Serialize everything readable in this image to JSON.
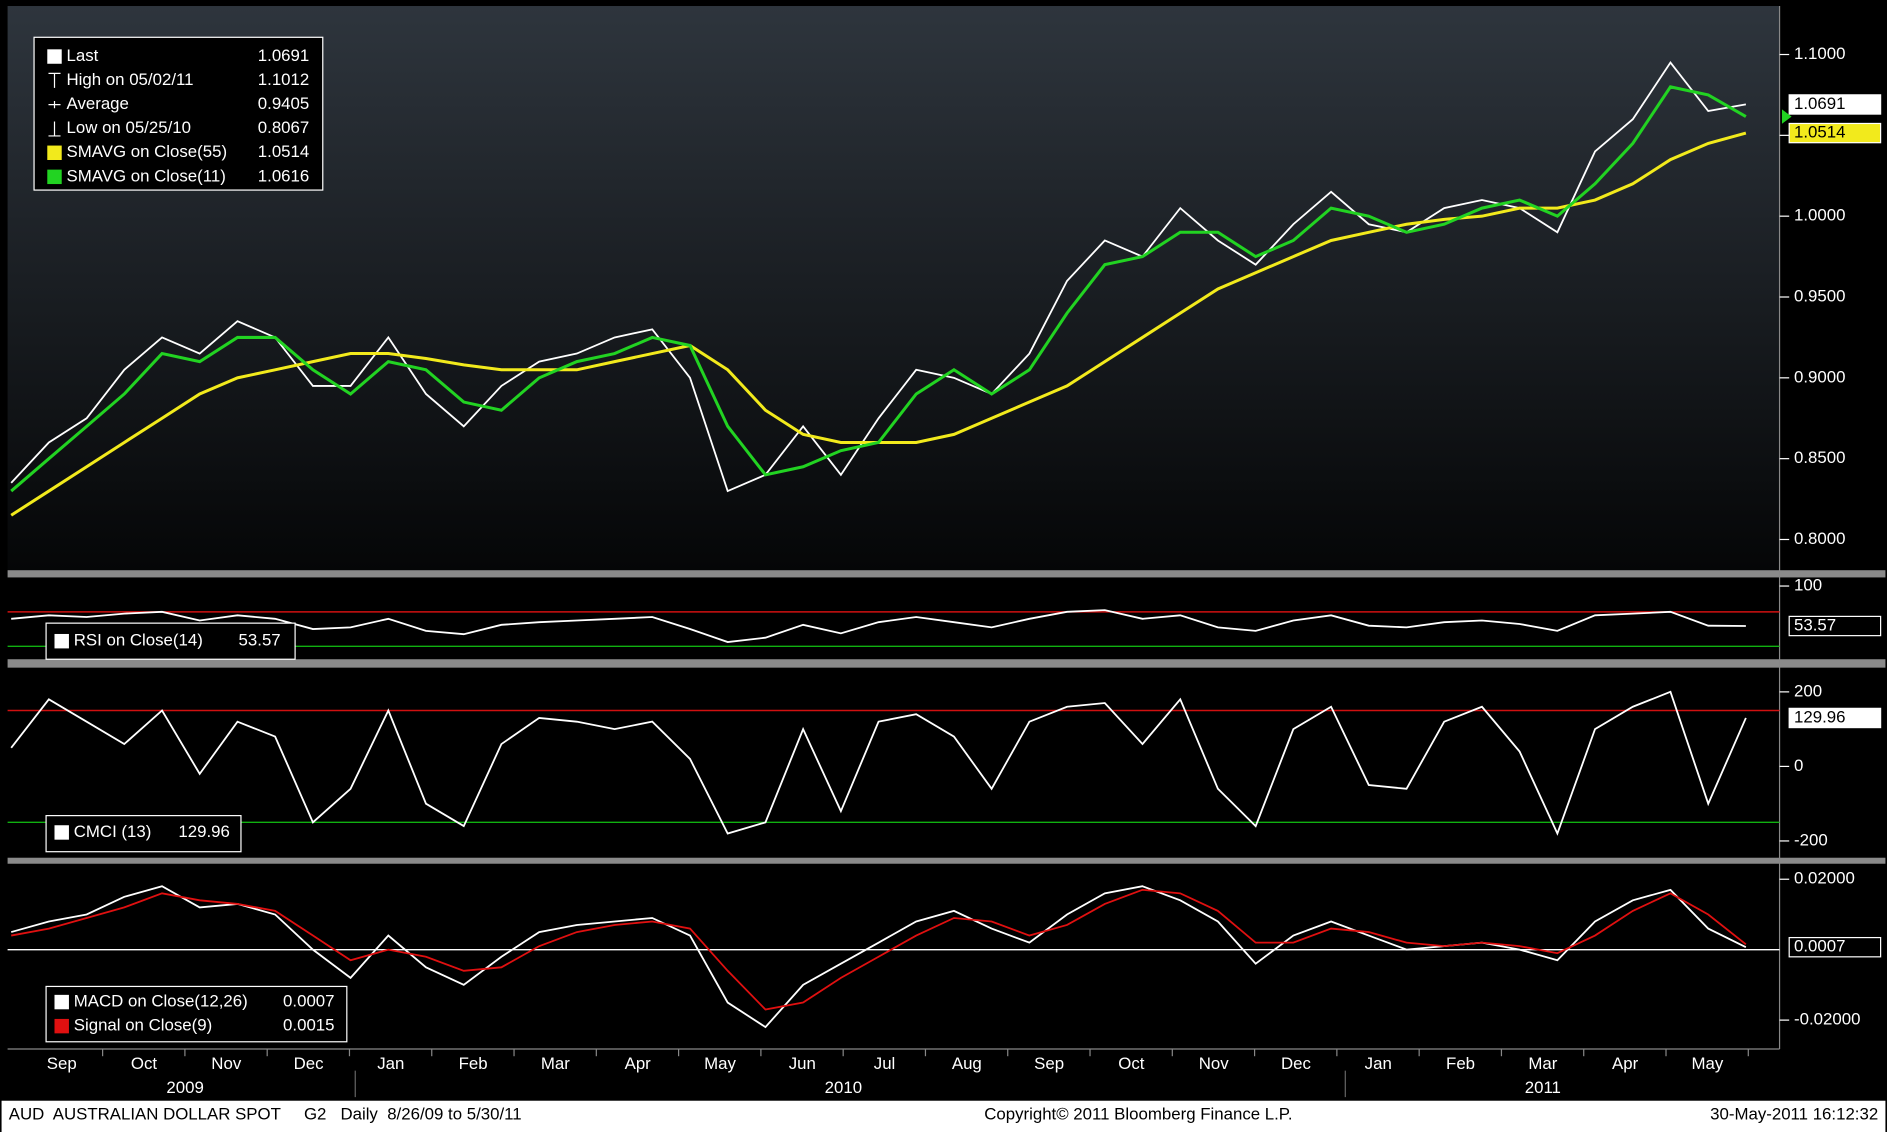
{
  "chart_data": [
    {
      "type": "line",
      "ylim": [
        0.781,
        1.13
      ],
      "yticks": [
        {
          "value": 0.8,
          "label": "0.8000"
        },
        {
          "value": 0.85,
          "label": "0.8500"
        },
        {
          "value": 0.9,
          "label": "0.9000"
        },
        {
          "value": 0.95,
          "label": "0.9500"
        },
        {
          "value": 1.0,
          "label": "1.0000"
        },
        {
          "value": 1.05,
          "label": "1.0500"
        },
        {
          "value": 1.1,
          "label": "1.1000"
        }
      ],
      "series": [
        {
          "name": "Last",
          "color": "#ffffff",
          "values": [
            0.835,
            0.86,
            0.875,
            0.905,
            0.925,
            0.915,
            0.935,
            0.925,
            0.895,
            0.895,
            0.925,
            0.89,
            0.87,
            0.895,
            0.91,
            0.915,
            0.925,
            0.93,
            0.9,
            0.83,
            0.84,
            0.87,
            0.84,
            0.875,
            0.905,
            0.9,
            0.89,
            0.915,
            0.96,
            0.985,
            0.975,
            1.005,
            0.985,
            0.97,
            0.995,
            1.015,
            0.995,
            0.99,
            1.005,
            1.01,
            1.005,
            0.99,
            1.04,
            1.06,
            1.095,
            1.065,
            1.0691
          ]
        },
        {
          "name": "SMAVG on Close(55)",
          "color": "#f2ea1c",
          "values": [
            0.815,
            0.83,
            0.845,
            0.86,
            0.875,
            0.89,
            0.9,
            0.905,
            0.91,
            0.915,
            0.915,
            0.912,
            0.908,
            0.905,
            0.905,
            0.905,
            0.91,
            0.915,
            0.92,
            0.905,
            0.88,
            0.865,
            0.86,
            0.86,
            0.86,
            0.865,
            0.875,
            0.885,
            0.895,
            0.91,
            0.925,
            0.94,
            0.955,
            0.965,
            0.975,
            0.985,
            0.99,
            0.995,
            0.998,
            1.0,
            1.005,
            1.005,
            1.01,
            1.02,
            1.035,
            1.045,
            1.0514
          ]
        },
        {
          "name": "SMAVG on Close(11)",
          "color": "#22d322",
          "values": [
            0.83,
            0.85,
            0.87,
            0.89,
            0.915,
            0.91,
            0.925,
            0.925,
            0.905,
            0.89,
            0.91,
            0.905,
            0.885,
            0.88,
            0.9,
            0.91,
            0.915,
            0.925,
            0.92,
            0.87,
            0.84,
            0.845,
            0.855,
            0.86,
            0.89,
            0.905,
            0.89,
            0.905,
            0.94,
            0.97,
            0.975,
            0.99,
            0.99,
            0.975,
            0.985,
            1.005,
            1.0,
            0.99,
            0.995,
            1.005,
            1.01,
            1.0,
            1.02,
            1.045,
            1.08,
            1.075,
            1.0616
          ]
        }
      ],
      "stats": [
        {
          "name": "High on 05/02/11",
          "value": 1.1012
        },
        {
          "name": "Average",
          "value": 0.9405
        },
        {
          "name": "Low on 05/25/10",
          "value": 0.8067
        }
      ]
    },
    {
      "type": "line",
      "ylim": [
        15,
        110
      ],
      "yticks": [
        100
      ],
      "ref_lines": [
        {
          "value": 70,
          "color": "#d01010"
        },
        {
          "value": 30,
          "color": "#10b010"
        }
      ],
      "series": [
        {
          "name": "RSI on Close(14)",
          "color": "#ffffff",
          "values": [
            62,
            66,
            64,
            68,
            70,
            60,
            66,
            62,
            50,
            52,
            62,
            48,
            44,
            55,
            58,
            60,
            62,
            64,
            50,
            35,
            40,
            55,
            45,
            58,
            64,
            58,
            52,
            62,
            70,
            72,
            62,
            66,
            52,
            48,
            60,
            66,
            54,
            52,
            58,
            60,
            56,
            48,
            66,
            68,
            70,
            54,
            53.57
          ]
        }
      ]
    },
    {
      "type": "line",
      "ylim": [
        -245,
        265
      ],
      "yticks": [
        -200,
        0,
        200
      ],
      "ref_lines": [
        {
          "value": 150,
          "color": "#d01010"
        },
        {
          "value": -150,
          "color": "#10b010"
        }
      ],
      "series": [
        {
          "name": "CMCI (13)",
          "color": "#ffffff",
          "values": [
            50,
            180,
            120,
            60,
            150,
            -20,
            120,
            80,
            -150,
            -60,
            150,
            -100,
            -160,
            60,
            130,
            120,
            100,
            120,
            20,
            -180,
            -150,
            100,
            -120,
            120,
            140,
            80,
            -60,
            120,
            160,
            170,
            60,
            180,
            -60,
            -160,
            100,
            160,
            -50,
            -60,
            120,
            160,
            40,
            -180,
            100,
            160,
            200,
            -100,
            129.96
          ]
        }
      ]
    },
    {
      "type": "line",
      "ylim": [
        -0.0282,
        0.0244
      ],
      "yticks": [
        {
          "value": -0.02,
          "label": "-0.02000"
        },
        {
          "value": 0.02,
          "label": "0.02000"
        }
      ],
      "ref_lines": [
        {
          "value": 0,
          "color": "#ffffff"
        }
      ],
      "series": [
        {
          "name": "MACD on Close(12,26)",
          "color": "#ffffff",
          "values": [
            0.005,
            0.008,
            0.01,
            0.015,
            0.018,
            0.012,
            0.013,
            0.01,
            0.0,
            -0.008,
            0.004,
            -0.005,
            -0.01,
            -0.002,
            0.005,
            0.007,
            0.008,
            0.009,
            0.004,
            -0.015,
            -0.022,
            -0.01,
            -0.004,
            0.002,
            0.008,
            0.011,
            0.006,
            0.002,
            0.01,
            0.016,
            0.018,
            0.014,
            0.008,
            -0.004,
            0.004,
            0.008,
            0.004,
            0.0,
            0.001,
            0.002,
            0.0,
            -0.003,
            0.008,
            0.014,
            0.017,
            0.006,
            0.0007
          ]
        },
        {
          "name": "Signal on Close(9)",
          "color": "#e01010",
          "values": [
            0.004,
            0.006,
            0.009,
            0.012,
            0.016,
            0.014,
            0.013,
            0.011,
            0.004,
            -0.003,
            0.0,
            -0.002,
            -0.006,
            -0.005,
            0.001,
            0.005,
            0.007,
            0.008,
            0.006,
            -0.006,
            -0.017,
            -0.015,
            -0.008,
            -0.002,
            0.004,
            0.009,
            0.008,
            0.004,
            0.007,
            0.013,
            0.017,
            0.016,
            0.011,
            0.002,
            0.002,
            0.006,
            0.005,
            0.002,
            0.001,
            0.002,
            0.001,
            -0.001,
            0.004,
            0.011,
            0.016,
            0.01,
            0.0015
          ]
        }
      ]
    }
  ],
  "time_axis": {
    "months": [
      "Sep",
      "Oct",
      "Nov",
      "Dec",
      "Jan",
      "Feb",
      "Mar",
      "Apr",
      "May",
      "Jun",
      "Jul",
      "Aug",
      "Sep",
      "Oct",
      "Nov",
      "Dec",
      "Jan",
      "Feb",
      "Mar",
      "Apr",
      "May"
    ],
    "years": [
      "2009",
      "2010",
      "2011"
    ]
  },
  "footer": {
    "left": "AUD  AUSTRALIAN DOLLAR SPOT     G2   Daily  8/26/09 to 5/30/11",
    "center": "Copyright© 2011 Bloomberg Finance L.P.",
    "right": "30-May-2011 16:12:32"
  }
}
